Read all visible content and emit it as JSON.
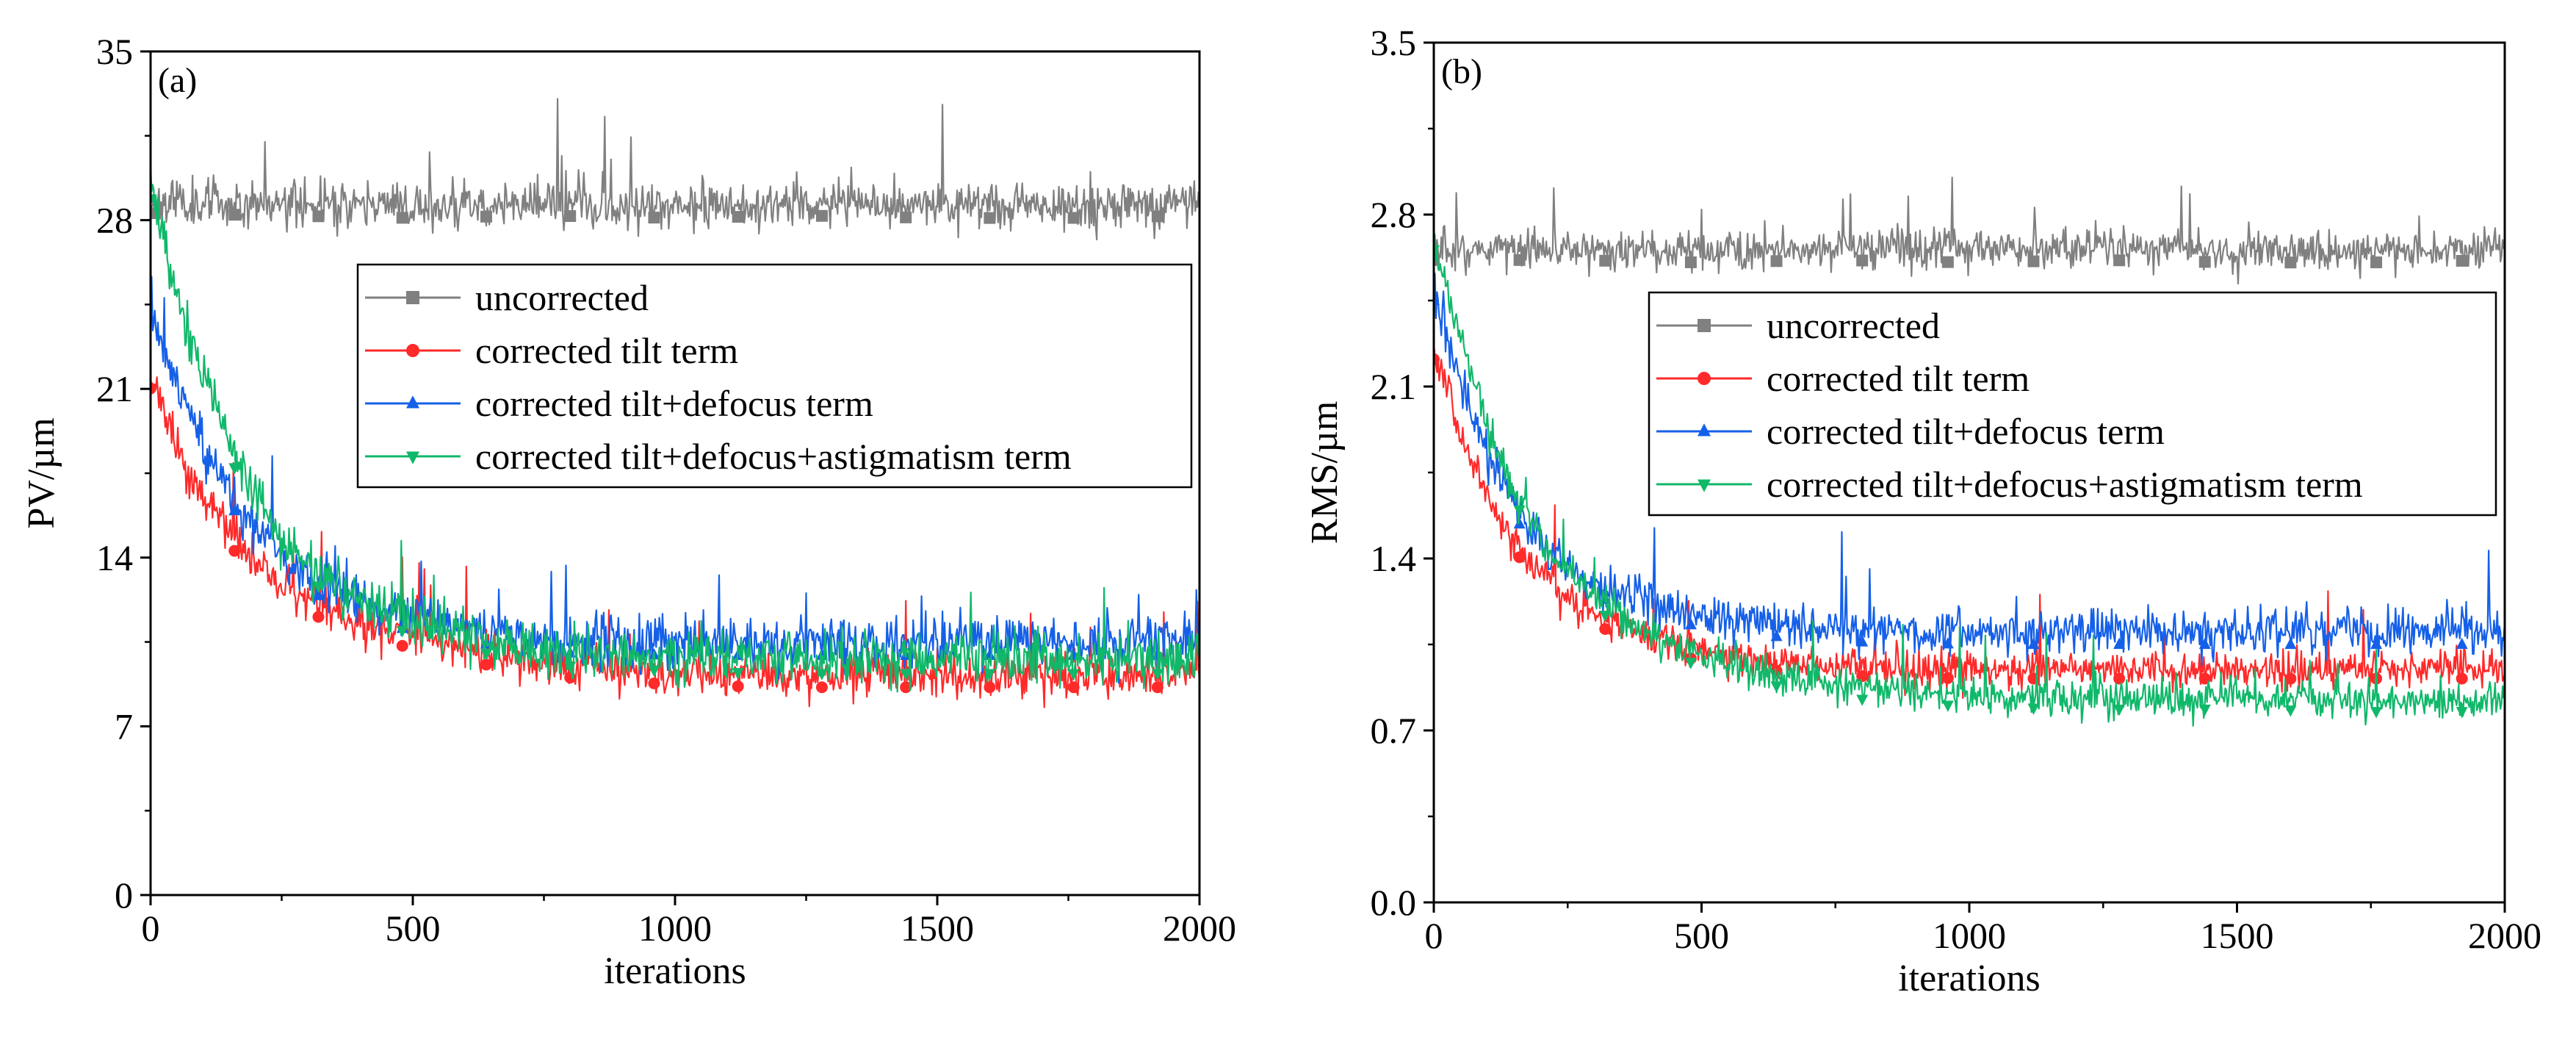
{
  "chart_data": [
    {
      "type": "line",
      "panel_label": "(a)",
      "xlabel": "iterations",
      "ylabel": "PV/µm",
      "xlim": [
        0,
        2000
      ],
      "ylim": [
        0,
        35
      ],
      "xticks": [
        "0",
        "500",
        "1000",
        "1500",
        "2000"
      ],
      "yticks": [
        "0",
        "7",
        "14",
        "21",
        "28",
        "35"
      ],
      "legend_position": "upper-right",
      "series": [
        {
          "name": "uncorrected",
          "color": "#808080",
          "marker": "square",
          "x": [
            0,
            250,
            500,
            750,
            1000,
            1250,
            1500,
            1750,
            2000
          ],
          "values": [
            28.8,
            28.7,
            28.6,
            28.7,
            28.6,
            28.7,
            28.6,
            28.6,
            28.7
          ],
          "noise": 0.85,
          "seed": 11
        },
        {
          "name": "corrected tilt term",
          "color": "#ff2a2a",
          "marker": "circle",
          "x": [
            0,
            50,
            100,
            150,
            200,
            250,
            300,
            400,
            500,
            600,
            700,
            800,
            1000,
            1200,
            1500,
            1750,
            2000
          ],
          "values": [
            21.5,
            18.5,
            16.5,
            15.0,
            13.8,
            12.9,
            12.2,
            11.3,
            10.7,
            10.2,
            9.8,
            9.5,
            9.2,
            9.1,
            9.1,
            9.1,
            9.1
          ],
          "noise": 0.8,
          "seed": 23
        },
        {
          "name": "corrected tilt+defocus term",
          "color": "#1560e8",
          "marker": "triangle-up",
          "x": [
            0,
            50,
            100,
            150,
            200,
            250,
            300,
            400,
            500,
            600,
            700,
            800,
            1000,
            1200,
            1500,
            1750,
            2000
          ],
          "values": [
            24.5,
            21.0,
            18.5,
            16.8,
            15.3,
            14.1,
            13.2,
            12.1,
            11.5,
            11.1,
            10.8,
            10.6,
            10.5,
            10.5,
            10.5,
            10.5,
            10.5
          ],
          "noise": 0.95,
          "seed": 37
        },
        {
          "name": "corrected tilt+defocus+astigmatism term",
          "color": "#10b86a",
          "marker": "triangle-down",
          "x": [
            0,
            50,
            100,
            150,
            200,
            250,
            300,
            400,
            500,
            600,
            700,
            800,
            1000,
            1200,
            1500,
            1750,
            2000
          ],
          "values": [
            29.5,
            25.0,
            21.5,
            18.8,
            16.5,
            14.8,
            13.7,
            12.3,
            11.4,
            10.8,
            10.4,
            10.1,
            9.9,
            9.8,
            9.8,
            9.8,
            9.8
          ],
          "noise": 1.0,
          "seed": 53
        }
      ]
    },
    {
      "type": "line",
      "panel_label": "(b)",
      "xlabel": "iterations",
      "ylabel": "RMS/µm",
      "xlim": [
        0,
        2000
      ],
      "ylim": [
        0,
        3.5
      ],
      "xticks": [
        "0",
        "500",
        "1000",
        "1500",
        "2000"
      ],
      "yticks": [
        "0.0",
        "0.7",
        "1.4",
        "2.1",
        "2.8",
        "3.5"
      ],
      "legend_position": "upper-right",
      "series": [
        {
          "name": "uncorrected",
          "color": "#808080",
          "marker": "square",
          "x": [
            0,
            250,
            500,
            750,
            1000,
            1250,
            1500,
            1750,
            2000
          ],
          "values": [
            2.66,
            2.66,
            2.65,
            2.66,
            2.65,
            2.66,
            2.65,
            2.65,
            2.66
          ],
          "noise": 0.075,
          "seed": 71
        },
        {
          "name": "corrected tilt term",
          "color": "#ff2a2a",
          "marker": "circle",
          "x": [
            0,
            50,
            100,
            150,
            200,
            250,
            300,
            400,
            500,
            600,
            700,
            800,
            1000,
            1200,
            1500,
            1750,
            2000
          ],
          "values": [
            2.25,
            1.9,
            1.65,
            1.47,
            1.34,
            1.24,
            1.17,
            1.08,
            1.02,
            0.99,
            0.97,
            0.96,
            0.95,
            0.95,
            0.95,
            0.95,
            0.95
          ],
          "noise": 0.065,
          "seed": 83
        },
        {
          "name": "corrected tilt+defocus term",
          "color": "#1560e8",
          "marker": "triangle-up",
          "x": [
            0,
            50,
            100,
            150,
            200,
            250,
            300,
            400,
            500,
            600,
            700,
            800,
            1000,
            1200,
            1500,
            1750,
            2000
          ],
          "values": [
            2.5,
            2.1,
            1.82,
            1.62,
            1.47,
            1.37,
            1.3,
            1.22,
            1.17,
            1.14,
            1.12,
            1.11,
            1.1,
            1.1,
            1.1,
            1.1,
            1.1
          ],
          "noise": 0.085,
          "seed": 97
        },
        {
          "name": "corrected tilt+defocus+astigmatism term",
          "color": "#10b86a",
          "marker": "triangle-down",
          "x": [
            0,
            50,
            100,
            150,
            200,
            250,
            300,
            400,
            500,
            600,
            700,
            800,
            1000,
            1200,
            1500,
            1750,
            2000
          ],
          "values": [
            2.7,
            2.3,
            1.95,
            1.68,
            1.48,
            1.34,
            1.24,
            1.1,
            1.0,
            0.94,
            0.9,
            0.87,
            0.84,
            0.83,
            0.83,
            0.82,
            0.82
          ],
          "noise": 0.07,
          "seed": 109
        }
      ]
    }
  ]
}
